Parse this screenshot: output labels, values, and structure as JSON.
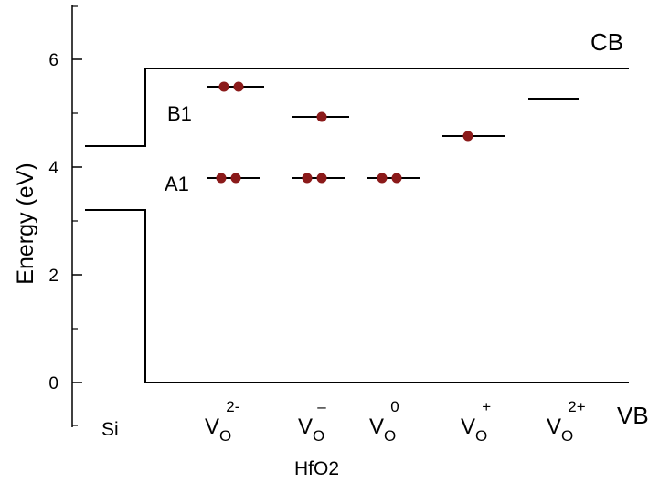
{
  "axis": {
    "ylabel": "Energy (eV)",
    "ytick_labels": [
      "0",
      "2",
      "4",
      "6"
    ]
  },
  "regions": {
    "si": "Si",
    "hfo2": "HfO2"
  },
  "band_edges": {
    "cb_label": "CB",
    "vb_label": "VB"
  },
  "level_labels": {
    "b1": "B1",
    "a1": "A1"
  },
  "vacancies": [
    {
      "base": "V",
      "sub": "O",
      "sup": "2-",
      "key": "vo-2minus"
    },
    {
      "base": "V",
      "sub": "O",
      "sup": "–",
      "key": "vo-minus"
    },
    {
      "base": "V",
      "sub": "O",
      "sup": "0",
      "key": "vo-neutral"
    },
    {
      "base": "V",
      "sub": "O",
      "sup": "+",
      "key": "vo-plus"
    },
    {
      "base": "V",
      "sub": "O",
      "sup": "2+",
      "key": "vo-2plus"
    }
  ],
  "colors": {
    "electron": "#8b1a1a",
    "line": "#000000"
  }
}
